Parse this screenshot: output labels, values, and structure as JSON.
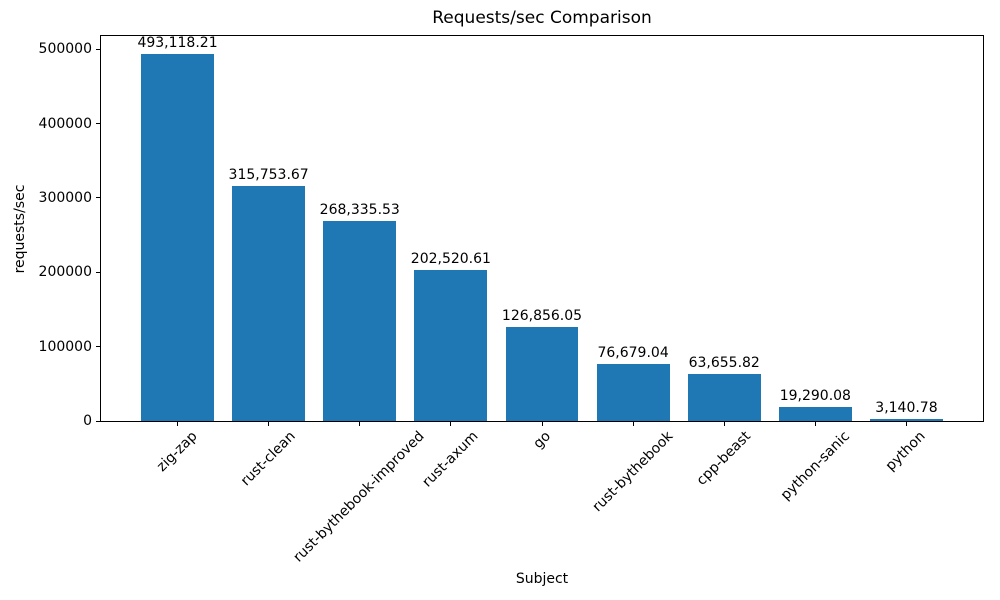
{
  "chart_data": {
    "type": "bar",
    "title": "Requests/sec Comparison",
    "xlabel": "Subject",
    "ylabel": "requests/sec",
    "categories": [
      "zig-zap",
      "rust-clean",
      "rust-bythebook-improved",
      "rust-axum",
      "go",
      "rust-bythebook",
      "cpp-beast",
      "python-sanic",
      "python"
    ],
    "values": [
      493118.21,
      315753.67,
      268335.53,
      202520.61,
      126856.05,
      76679.04,
      63655.82,
      19290.08,
      3140.78
    ],
    "value_labels": [
      "493,118.21",
      "315,753.67",
      "268,335.53",
      "202,520.61",
      "126,856.05",
      "76,679.04",
      "63,655.82",
      "19,290.08",
      "3,140.78"
    ],
    "yticks": [
      0,
      100000,
      200000,
      300000,
      400000,
      500000
    ],
    "ytick_labels": [
      "0",
      "100000",
      "200000",
      "300000",
      "400000",
      "500000"
    ],
    "ylim": [
      0,
      517774
    ],
    "bar_color": "#1f77b4",
    "axis_color": "#000000",
    "background_color": "#ffffff",
    "grid": false,
    "legend": "none",
    "xtick_rotation": 45
  }
}
